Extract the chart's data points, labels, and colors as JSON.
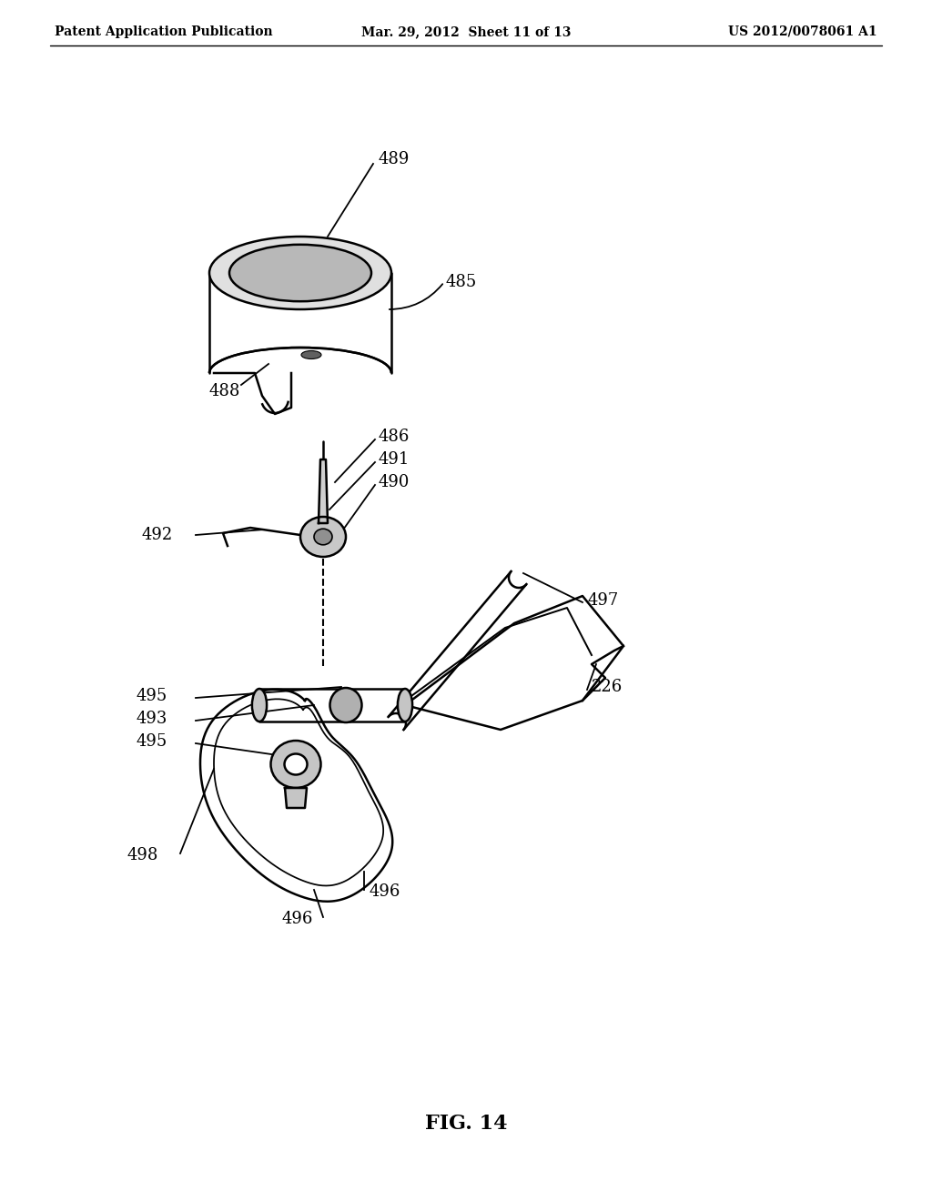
{
  "header_left": "Patent Application Publication",
  "header_mid": "Mar. 29, 2012  Sheet 11 of 13",
  "header_right": "US 2012/0078061 A1",
  "figure_label": "FIG. 14",
  "background_color": "#ffffff",
  "line_color": "#000000",
  "gray_light": "#cccccc",
  "gray_mid": "#aaaaaa",
  "gray_dark": "#888888"
}
